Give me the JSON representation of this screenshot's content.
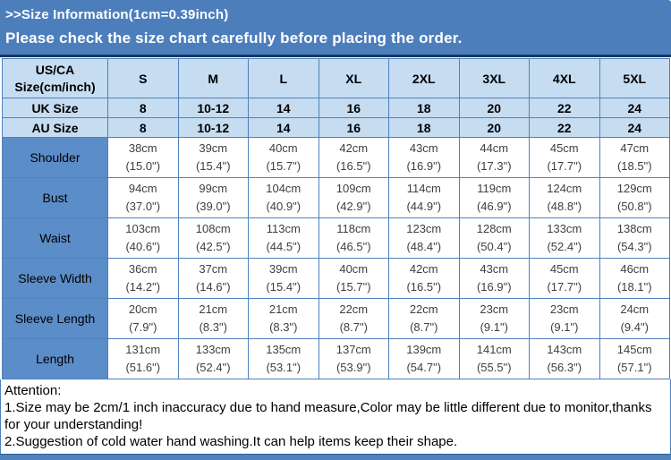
{
  "banner": {
    "title": ">>Size Information(1cm=0.39inch)",
    "subtitle": "Please check the size chart carefully before placing the order."
  },
  "table": {
    "corner_label": "US/CA\nSize(cm/inch)",
    "size_columns": [
      "S",
      "M",
      "L",
      "XL",
      "2XL",
      "3XL",
      "4XL",
      "5XL"
    ],
    "size_rows": [
      {
        "label": "UK Size",
        "values": [
          "8",
          "10-12",
          "14",
          "16",
          "18",
          "20",
          "22",
          "24"
        ]
      },
      {
        "label": "AU Size",
        "values": [
          "8",
          "10-12",
          "14",
          "16",
          "18",
          "20",
          "22",
          "24"
        ]
      }
    ],
    "measurement_rows": [
      {
        "label": "Shoulder",
        "values": [
          [
            "38cm",
            "(15.0\")"
          ],
          [
            "39cm",
            "(15.4\")"
          ],
          [
            "40cm",
            "(15.7\")"
          ],
          [
            "42cm",
            "(16.5\")"
          ],
          [
            "43cm",
            "(16.9\")"
          ],
          [
            "44cm",
            "(17.3\")"
          ],
          [
            "45cm",
            "(17.7\")"
          ],
          [
            "47cm",
            "(18.5\")"
          ]
        ]
      },
      {
        "label": "Bust",
        "values": [
          [
            "94cm",
            "(37.0\")"
          ],
          [
            "99cm",
            "(39.0\")"
          ],
          [
            "104cm",
            "(40.9\")"
          ],
          [
            "109cm",
            "(42.9\")"
          ],
          [
            "114cm",
            "(44.9\")"
          ],
          [
            "119cm",
            "(46.9\")"
          ],
          [
            "124cm",
            "(48.8\")"
          ],
          [
            "129cm",
            "(50.8\")"
          ]
        ]
      },
      {
        "label": "Waist",
        "values": [
          [
            "103cm",
            "(40.6\")"
          ],
          [
            "108cm",
            "(42.5\")"
          ],
          [
            "113cm",
            "(44.5\")"
          ],
          [
            "118cm",
            "(46.5\")"
          ],
          [
            "123cm",
            "(48.4\")"
          ],
          [
            "128cm",
            "(50.4\")"
          ],
          [
            "133cm",
            "(52.4\")"
          ],
          [
            "138cm",
            "(54.3\")"
          ]
        ]
      },
      {
        "label": "Sleeve Width",
        "values": [
          [
            "36cm",
            "(14.2\")"
          ],
          [
            "37cm",
            "(14.6\")"
          ],
          [
            "39cm",
            "(15.4\")"
          ],
          [
            "40cm",
            "(15.7\")"
          ],
          [
            "42cm",
            "(16.5\")"
          ],
          [
            "43cm",
            "(16.9\")"
          ],
          [
            "45cm",
            "(17.7\")"
          ],
          [
            "46cm",
            "(18.1\")"
          ]
        ]
      },
      {
        "label": "Sleeve Length",
        "values": [
          [
            "20cm",
            "(7.9\")"
          ],
          [
            "21cm",
            "(8.3\")"
          ],
          [
            "21cm",
            "(8.3\")"
          ],
          [
            "22cm",
            "(8.7\")"
          ],
          [
            "22cm",
            "(8.7\")"
          ],
          [
            "23cm",
            "(9.1\")"
          ],
          [
            "23cm",
            "(9.1\")"
          ],
          [
            "24cm",
            "(9.4\")"
          ]
        ]
      },
      {
        "label": "Length",
        "values": [
          [
            "131cm",
            "(51.6\")"
          ],
          [
            "133cm",
            "(52.4\")"
          ],
          [
            "135cm",
            "(53.1\")"
          ],
          [
            "137cm",
            "(53.9\")"
          ],
          [
            "139cm",
            "(54.7\")"
          ],
          [
            "141cm",
            "(55.5\")"
          ],
          [
            "143cm",
            "(56.3\")"
          ],
          [
            "145cm",
            "(57.1\")"
          ]
        ]
      }
    ]
  },
  "attention": {
    "heading": "Attention:",
    "notes": [
      "1.Size may be 2cm/1 inch inaccuracy due to hand measure,Color may be little different due to monitor,thanks for your understanding!",
      "2.Suggestion of cold water hand washing.It can help items keep their shape."
    ]
  },
  "colors": {
    "banner_blue": "#4d7ebc",
    "banner_border": "#17375d",
    "table_border": "#4f81bd",
    "header_bg": "#c6dcf1",
    "label_bg": "#5b8dc9",
    "bottom_bar": "#4f81bd"
  }
}
